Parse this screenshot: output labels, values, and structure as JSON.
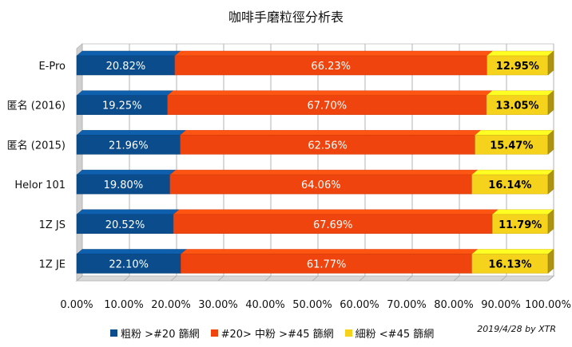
{
  "chart_data": {
    "type": "bar",
    "orientation": "horizontal",
    "stacked": "percent",
    "title": "咖啡手磨粒徑分析表",
    "categories": [
      "E-Pro",
      "匿名 (2016)",
      "匿名 (2015)",
      "Helor 101",
      "1Z JS",
      "1Z JE"
    ],
    "series": [
      {
        "name": "粗粉 >#20 篩網",
        "color": "#0b4d8c",
        "values": [
          20.82,
          19.25,
          21.96,
          19.8,
          20.52,
          22.1
        ],
        "labels": [
          "20.82%",
          "19.25%",
          "21.96%",
          "19.80%",
          "20.52%",
          "22.10%"
        ]
      },
      {
        "name": "#20> 中粉 >#45 篩網",
        "color": "#f0440e",
        "values": [
          66.23,
          67.7,
          62.56,
          64.06,
          67.69,
          61.77
        ],
        "labels": [
          "66.23%",
          "67.70%",
          "62.56%",
          "64.06%",
          "67.69%",
          "61.77%"
        ]
      },
      {
        "name": "細粉 <#45 篩網",
        "color": "#f5d21c",
        "values": [
          12.95,
          13.05,
          15.47,
          16.14,
          11.79,
          16.13
        ],
        "labels": [
          "12.95%",
          "13.05%",
          "15.47%",
          "16.14%",
          "11.79%",
          "16.13%"
        ]
      }
    ],
    "x_ticks": [
      "0.00%",
      "10.00%",
      "20.00%",
      "30.00%",
      "40.00%",
      "50.00%",
      "60.00%",
      "70.00%",
      "80.00%",
      "90.00%",
      "100.00%"
    ],
    "xlim": [
      0,
      100
    ],
    "grid": true,
    "legend_position": "bottom"
  },
  "credit": "2019/4/28 by XTR"
}
